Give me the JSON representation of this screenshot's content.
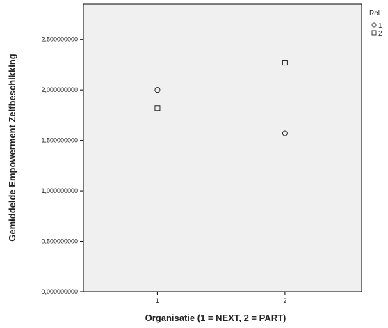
{
  "chart_data": {
    "type": "scatter",
    "xlabel": "Organisatie (1 = NEXT, 2 = PART)",
    "ylabel": "Gemiddelde Empowerment Zelfbeschikking",
    "x_ticks": [
      "1",
      "2"
    ],
    "y_ticks": [
      "0,000000000",
      "0,500000000",
      "1,000000000",
      "1,500000000",
      "2,000000000",
      "2,500000000"
    ],
    "ylim": [
      0,
      2.85
    ],
    "xlim": [
      0.42,
      2.6
    ],
    "grid": false,
    "plot_background": "#f0f0f0",
    "legend": {
      "title": "Rol",
      "position": "top-right",
      "entries": [
        {
          "label": "1",
          "marker": "circle"
        },
        {
          "label": "2",
          "marker": "square"
        }
      ]
    },
    "series": [
      {
        "name": "1",
        "marker": "circle",
        "points": [
          {
            "x": 1,
            "y": 2.0
          },
          {
            "x": 2,
            "y": 1.57
          }
        ]
      },
      {
        "name": "2",
        "marker": "square",
        "points": [
          {
            "x": 1,
            "y": 1.82
          },
          {
            "x": 2,
            "y": 2.27
          }
        ]
      }
    ]
  }
}
